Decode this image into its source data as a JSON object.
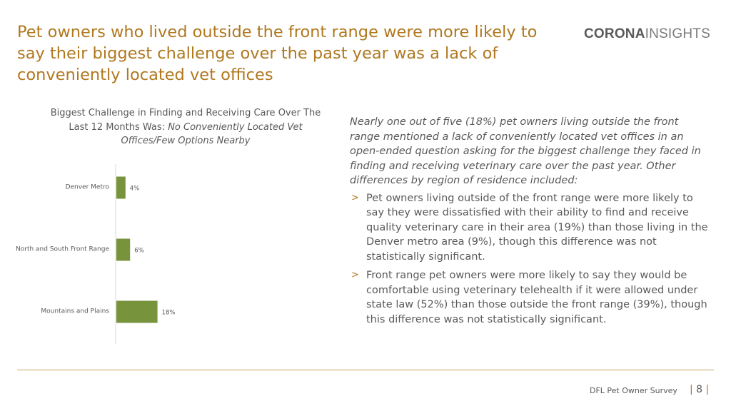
{
  "slide": {
    "title": "Pet owners who lived outside the front range were more likely to say their biggest challenge over the past year was a lack of conveniently located vet offices"
  },
  "logo": {
    "bold": "CORONA",
    "light": "INSIGHTS"
  },
  "chart_data": {
    "type": "bar",
    "orientation": "horizontal",
    "title_plain": "Biggest Challenge in Finding and Receiving Care Over The Last 12 Months Was: ",
    "title_italic": "No Conveniently Located Vet Offices/Few Options Nearby",
    "categories": [
      "Denver Metro",
      "North and South Front Range",
      "Mountains and Plains"
    ],
    "values": [
      4,
      6,
      18
    ],
    "value_labels": [
      "4%",
      "6%",
      "18%"
    ],
    "unit": "%",
    "xlim": [
      0,
      100
    ],
    "bar_color": "#77933c",
    "grid": false,
    "legend": "none"
  },
  "notes": {
    "intro": "Nearly one out of five (18%) pet owners living outside the front range mentioned a lack of conveniently located vet offices in an open-ended question asking for the biggest challenge they faced in finding and receiving veterinary care over the past year. Other differences by region of residence included:",
    "bullet_glyph": ">",
    "bullets": [
      "Pet owners living outside of the front range were more likely to say they were dissatisfied with their ability to find and receive quality veterinary care in their area (19%) than those living in the Denver metro area (9%), though this difference was not statistically significant.",
      "Front range pet owners were more likely to say they would be comfortable using veterinary telehealth if it were allowed under state law (52%) than those outside the front range (39%), though this difference was not statistically significant."
    ]
  },
  "footer": {
    "label": "DFL Pet Owner Survey",
    "page": "8"
  },
  "colors": {
    "accent": "#b0781f",
    "bar": "#77933c",
    "text": "#595959"
  }
}
